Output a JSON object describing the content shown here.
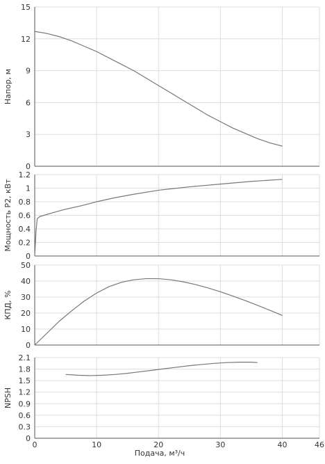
{
  "chart_data": {
    "type": "line",
    "xlabel": "Подача, м³/ч",
    "xlim": [
      0,
      46
    ],
    "xticks": [
      0,
      10,
      20,
      30,
      40,
      46
    ],
    "grid": true,
    "line_color": "#777777",
    "panels": [
      {
        "ylabel": "Напор, м",
        "ylim": [
          0,
          15
        ],
        "yticks": [
          "0",
          "3",
          "6",
          "9",
          "12",
          "15"
        ],
        "series": [
          {
            "x": [
              0,
              2,
              4,
              6,
              8,
              10,
              12,
              14,
              16,
              18,
              20,
              22,
              24,
              26,
              28,
              30,
              32,
              34,
              36,
              38,
              40
            ],
            "y": [
              12.7,
              12.5,
              12.2,
              11.8,
              11.3,
              10.8,
              10.2,
              9.6,
              9.0,
              8.3,
              7.6,
              6.9,
              6.2,
              5.5,
              4.8,
              4.2,
              3.6,
              3.1,
              2.6,
              2.2,
              1.9
            ]
          }
        ]
      },
      {
        "ylabel": "Мощность P2, кВт",
        "ylim": [
          0,
          1.2
        ],
        "yticks": [
          "0",
          "0.2",
          "0.4",
          "0.6",
          "0.8",
          "1",
          "1.2"
        ],
        "series": [
          {
            "x": [
              0,
              0.2,
              0.4,
              0.8,
              1.5,
              3,
              5,
              7.5,
              10,
              13,
              16,
              20,
              25,
              30,
              35,
              40
            ],
            "y": [
              0,
              0.35,
              0.55,
              0.58,
              0.6,
              0.64,
              0.69,
              0.74,
              0.8,
              0.86,
              0.91,
              0.97,
              1.02,
              1.06,
              1.1,
              1.13
            ]
          }
        ]
      },
      {
        "ylabel": "КПД, %",
        "ylim": [
          0,
          50
        ],
        "yticks": [
          "0",
          "10",
          "20",
          "30",
          "40",
          "50"
        ],
        "series": [
          {
            "x": [
              0,
              2,
              4,
              6,
              8,
              10,
              12,
              14,
              16,
              18,
              20,
              22,
              24,
              26,
              28,
              30,
              32,
              34,
              36,
              38,
              40
            ],
            "y": [
              0,
              7.5,
              15,
              21.5,
              27.5,
              32.5,
              36.5,
              39.2,
              40.8,
              41.5,
              41.5,
              40.8,
              39.5,
              37.8,
              35.7,
              33.3,
              30.6,
              27.8,
              24.8,
              21.7,
              18.5
            ]
          }
        ]
      },
      {
        "ylabel": "NPSH",
        "ylim": [
          0,
          2.1
        ],
        "yticks": [
          "0",
          "0.3",
          "0.6",
          "0.9",
          "1.2",
          "1.5",
          "1.8",
          "2.1"
        ],
        "series": [
          {
            "x": [
              5,
              7,
              9,
              11,
              13,
              15,
              17,
              19,
              21,
              23,
              25,
              27,
              29,
              31,
              33,
              35,
              36
            ],
            "y": [
              1.66,
              1.64,
              1.63,
              1.64,
              1.66,
              1.69,
              1.73,
              1.77,
              1.81,
              1.85,
              1.89,
              1.92,
              1.95,
              1.97,
              1.98,
              1.98,
              1.97
            ]
          }
        ]
      }
    ]
  }
}
